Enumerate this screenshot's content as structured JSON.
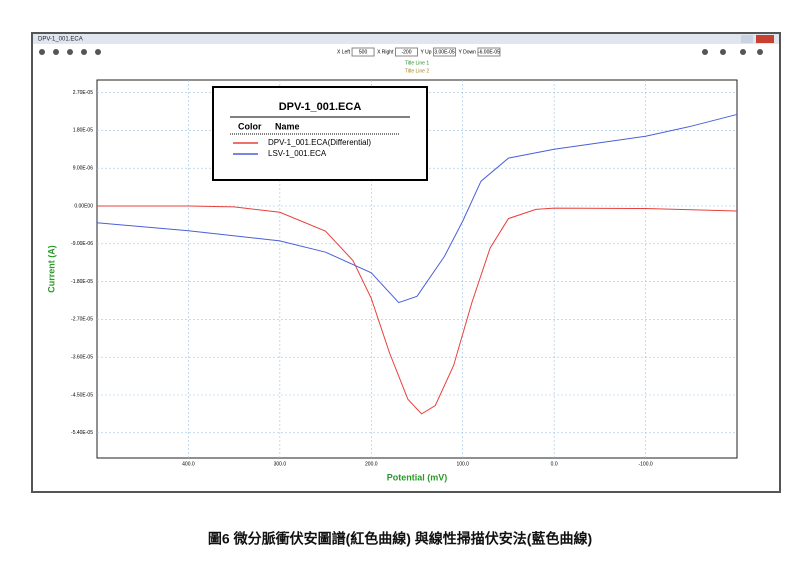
{
  "window": {
    "title": "DPV-1_001.ECA",
    "toolbar": [
      {
        "label": "X Left",
        "value": "500"
      },
      {
        "label": "X Right",
        "value": "-200"
      },
      {
        "label": "Y Up",
        "value": "3.00E-05"
      },
      {
        "label": "Y Down",
        "value": "-6.00E-05"
      }
    ]
  },
  "chart_data": {
    "type": "line",
    "title_lines": [
      "Title Line 1",
      "Title Line 2"
    ],
    "legend_title": "DPV-1_001.ECA",
    "legend_headers": [
      "Color",
      "Name"
    ],
    "x_label": "Potential (mV)",
    "y_label": "Current (A)",
    "xlim": [
      500,
      -200
    ],
    "ylim": [
      -6e-05,
      3e-05
    ],
    "xticks": [
      {
        "value": 400,
        "label": "400.0"
      },
      {
        "value": 300,
        "label": "300.0"
      },
      {
        "value": 200,
        "label": "200.0"
      },
      {
        "value": 100,
        "label": "100.0"
      },
      {
        "value": 0,
        "label": "0.0"
      },
      {
        "value": -100,
        "label": "-100.0"
      }
    ],
    "yticks": [
      {
        "value": 2.7e-05,
        "label": "2.70E-05"
      },
      {
        "value": 1.8e-05,
        "label": "1.80E-05"
      },
      {
        "value": 9e-06,
        "label": "9.00E-06"
      },
      {
        "value": 0,
        "label": "0.00E00"
      },
      {
        "value": -9e-06,
        "label": "-9.00E-06"
      },
      {
        "value": -1.8e-05,
        "label": "-1.80E-05"
      },
      {
        "value": -2.7e-05,
        "label": "-2.70E-05"
      },
      {
        "value": -3.6e-05,
        "label": "-3.60E-05"
      },
      {
        "value": -4.5e-05,
        "label": "-4.50E-05"
      },
      {
        "value": -5.4e-05,
        "label": "-5.40E-05"
      }
    ],
    "grid": true,
    "series": [
      {
        "name": "DPV-1_001.ECA(Differential)",
        "color": "#e8403a",
        "x": [
          500,
          400,
          350,
          300,
          250,
          220,
          200,
          180,
          160,
          145,
          130,
          110,
          90,
          70,
          50,
          20,
          0,
          -100,
          -200
        ],
        "values": [
          0,
          0,
          -2e-07,
          -1.5e-06,
          -6e-06,
          -1.3e-05,
          -2.2e-05,
          -3.5e-05,
          -4.6e-05,
          -4.95e-05,
          -4.75e-05,
          -3.8e-05,
          -2.3e-05,
          -1e-05,
          -3e-06,
          -8e-07,
          -5e-07,
          -6e-07,
          -1.2e-06
        ]
      },
      {
        "name": "LSV-1_001.ECA",
        "color": "#4a5fd8",
        "x": [
          500,
          400,
          300,
          250,
          200,
          170,
          150,
          120,
          100,
          80,
          50,
          0,
          -100,
          -150,
          -200
        ],
        "values": [
          -4e-06,
          -5.9e-06,
          -8.3e-06,
          -1.1e-05,
          -1.59e-05,
          -2.3e-05,
          -2.15e-05,
          -1.2e-05,
          -3.6e-06,
          5.9e-06,
          1.14e-05,
          1.35e-05,
          1.66e-05,
          1.9e-05,
          2.18e-05
        ]
      }
    ]
  },
  "caption": "圖6 微分脈衝伏安圖譜(紅色曲線) 與線性掃描伏安法(藍色曲線)"
}
